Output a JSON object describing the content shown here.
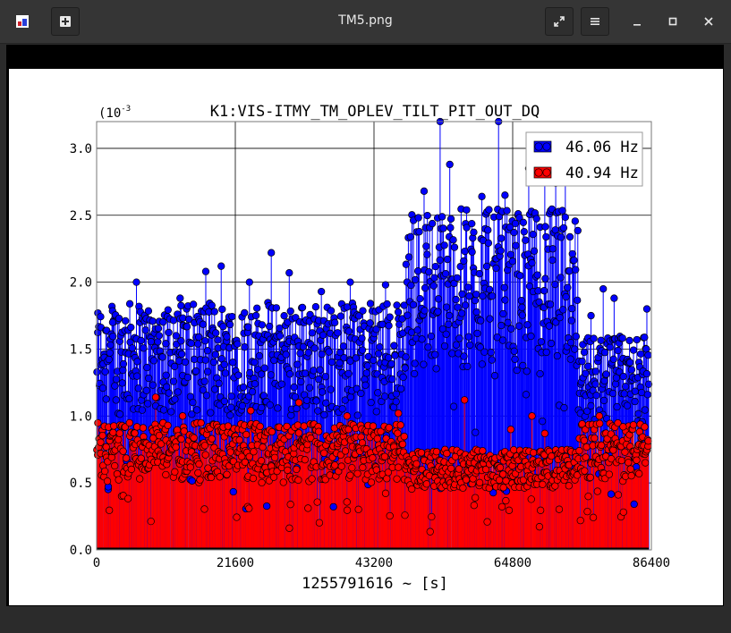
{
  "window": {
    "title": "TM5.png",
    "app_icon": "image-viewer-icon",
    "new_button_icon": "plus-icon",
    "fullscreen_icon": "expand-icon",
    "menu_icon": "hamburger-icon",
    "minimize_icon": "minimize-icon",
    "maximize_icon": "maximize-icon",
    "close_icon": "close-icon"
  },
  "chart_data": {
    "type": "scatter",
    "title": "K1:VIS-ITMY_TM_OPLEV_TILT_PIT_OUT_DQ",
    "xlabel": "1255791616 ~ [s]",
    "ylabel": "",
    "y_scale_label": "(10",
    "y_scale_exponent": "-3",
    "xlim": [
      0,
      86400
    ],
    "ylim": [
      0,
      3.2
    ],
    "x_ticks": [
      "0",
      "21600",
      "43200",
      "64800",
      "86400"
    ],
    "y_ticks": [
      "0.0",
      "0.5",
      "1.0",
      "1.5",
      "2.0",
      "2.5",
      "3.0"
    ],
    "grid": true,
    "legend_position": "top-right",
    "marker_style": "stem",
    "series": [
      {
        "name": "46.06 Hz",
        "color": "#0000ff",
        "segments": [
          {
            "x_range": [
              0,
              48000
            ],
            "typical_range": [
              1.0,
              1.85
            ],
            "peaks": [
              [
                2500,
                1.7
              ],
              [
                6200,
                2.0
              ],
              [
                13000,
                1.88
              ],
              [
                17000,
                2.08
              ],
              [
                19400,
                2.12
              ],
              [
                23800,
                2.0
              ],
              [
                27200,
                2.22
              ],
              [
                30000,
                2.07
              ],
              [
                35000,
                1.93
              ],
              [
                39500,
                2.0
              ],
              [
                45000,
                1.98
              ]
            ]
          },
          {
            "x_range": [
              48000,
              75000
            ],
            "typical_range": [
              1.3,
              2.55
            ],
            "peaks": [
              [
                51000,
                2.68
              ],
              [
                53500,
                3.25
              ],
              [
                55000,
                2.88
              ],
              [
                60000,
                2.64
              ],
              [
                62600,
                3.22
              ],
              [
                63600,
                2.65
              ],
              [
                67300,
                2.85
              ],
              [
                69800,
                2.83
              ],
              [
                71500,
                2.74
              ],
              [
                73000,
                2.82
              ]
            ]
          },
          {
            "x_range": [
              75000,
              86000
            ],
            "typical_range": [
              0.95,
              1.6
            ],
            "peaks": [
              [
                77000,
                1.75
              ],
              [
                78900,
                1.95
              ],
              [
                80600,
                1.88
              ],
              [
                85700,
                1.8
              ]
            ]
          }
        ]
      },
      {
        "name": "40.94 Hz",
        "color": "#ff0000",
        "segments": [
          {
            "x_range": [
              0,
              48000
            ],
            "typical_range": [
              0.5,
              0.95
            ],
            "peaks": [
              [
                9200,
                1.14
              ],
              [
                13400,
                1.0
              ],
              [
                24000,
                1.04
              ],
              [
                31500,
                1.1
              ],
              [
                39000,
                1.0
              ],
              [
                47000,
                1.02
              ]
            ]
          },
          {
            "x_range": [
              48000,
              75000
            ],
            "typical_range": [
              0.45,
              0.75
            ],
            "peaks": [
              [
                57300,
                1.12
              ],
              [
                64500,
                0.9
              ],
              [
                67800,
                1.0
              ],
              [
                69800,
                0.87
              ]
            ]
          },
          {
            "x_range": [
              75000,
              86000
            ],
            "typical_range": [
              0.5,
              0.95
            ],
            "peaks": [
              [
                78300,
                1.0
              ],
              [
                82000,
                0.92
              ]
            ]
          }
        ]
      }
    ]
  }
}
